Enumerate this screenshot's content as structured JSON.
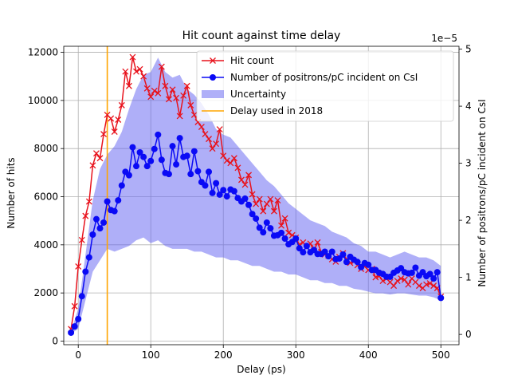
{
  "chart_data": {
    "type": "line",
    "title": "Hit count against time delay",
    "xlabel": "Delay (ps)",
    "ylabel": "Number of hits",
    "y2label": "Number of positrons/pC incident on CsI",
    "y2_offset_text": "1e−5",
    "xlim": [
      -20,
      525
    ],
    "ylim": [
      -150,
      12250
    ],
    "y2lim": [
      -0.18,
      5.05
    ],
    "x_ticks": [
      0,
      100,
      200,
      300,
      400,
      500
    ],
    "y_ticks": [
      0,
      2000,
      4000,
      6000,
      8000,
      10000,
      12000
    ],
    "y2_ticks": [
      0,
      1,
      2,
      3,
      4,
      5
    ],
    "grid": true,
    "legend_position": "top-right",
    "vline": {
      "name": "Delay used in 2018",
      "x": 40,
      "color": "#ffa500"
    },
    "series": [
      {
        "name": "Hit count",
        "axis": "left",
        "color": "#e8121c",
        "marker": "x",
        "x": [
          -10,
          -5,
          0,
          5,
          10,
          15,
          20,
          25,
          30,
          35,
          40,
          45,
          50,
          55,
          60,
          65,
          70,
          75,
          80,
          85,
          90,
          95,
          100,
          105,
          110,
          115,
          120,
          125,
          130,
          135,
          140,
          145,
          150,
          155,
          160,
          165,
          170,
          175,
          180,
          185,
          190,
          195,
          200,
          205,
          210,
          215,
          220,
          225,
          230,
          235,
          240,
          245,
          250,
          255,
          260,
          265,
          270,
          275,
          280,
          285,
          290,
          295,
          300,
          305,
          310,
          315,
          320,
          325,
          330,
          335,
          340,
          345,
          350,
          355,
          360,
          365,
          370,
          375,
          380,
          385,
          390,
          395,
          400,
          405,
          410,
          415,
          420,
          425,
          430,
          435,
          440,
          445,
          450,
          455,
          460,
          465,
          470,
          475,
          480,
          485,
          490,
          495,
          500
        ],
        "values": [
          500,
          1450,
          3100,
          4200,
          5200,
          5800,
          7300,
          7800,
          7600,
          8600,
          9400,
          9250,
          8700,
          9200,
          9800,
          11200,
          10600,
          11800,
          11200,
          11300,
          11000,
          10500,
          10150,
          10400,
          10300,
          11400,
          10600,
          10050,
          10450,
          10100,
          9350,
          10200,
          10600,
          9800,
          9400,
          9100,
          8900,
          8600,
          8400,
          8000,
          8200,
          8800,
          7700,
          7500,
          7400,
          7600,
          7200,
          6700,
          6500,
          6900,
          6100,
          5700,
          5900,
          5400,
          5700,
          5900,
          5400,
          5850,
          4800,
          5100,
          4500,
          4400,
          4300,
          4000,
          4100,
          3900,
          4050,
          3750,
          4100,
          3700,
          3600,
          3550,
          3400,
          3300,
          3500,
          3650,
          3400,
          3250,
          3300,
          3150,
          3000,
          3100,
          2950,
          3000,
          2650,
          2700,
          2500,
          2600,
          2450,
          2300,
          2500,
          2600,
          2550,
          2350,
          2600,
          2450,
          2300,
          2200,
          2350,
          2400,
          2300,
          2200,
          1850
        ]
      },
      {
        "name": "Number of positrons/pC incident on CsI",
        "axis": "right",
        "color": "#0a0af5",
        "marker": "o",
        "x": [
          -10,
          -5,
          0,
          5,
          10,
          15,
          20,
          25,
          30,
          35,
          40,
          45,
          50,
          55,
          60,
          65,
          70,
          75,
          80,
          85,
          90,
          95,
          100,
          105,
          110,
          115,
          120,
          125,
          130,
          135,
          140,
          145,
          150,
          155,
          160,
          165,
          170,
          175,
          180,
          185,
          190,
          195,
          200,
          205,
          210,
          215,
          220,
          225,
          230,
          235,
          240,
          245,
          250,
          255,
          260,
          265,
          270,
          275,
          280,
          285,
          290,
          295,
          300,
          305,
          310,
          315,
          320,
          325,
          330,
          335,
          340,
          345,
          350,
          355,
          360,
          365,
          370,
          375,
          380,
          385,
          390,
          395,
          400,
          405,
          410,
          415,
          420,
          425,
          430,
          435,
          440,
          445,
          450,
          455,
          460,
          465,
          470,
          475,
          480,
          485,
          490,
          495,
          500
        ],
        "values": [
          0.03,
          0.14,
          0.27,
          0.67,
          1.1,
          1.35,
          1.75,
          2.02,
          1.86,
          1.96,
          2.33,
          2.18,
          2.16,
          2.35,
          2.61,
          2.85,
          2.79,
          3.28,
          2.95,
          3.19,
          3.11,
          2.95,
          3.04,
          3.25,
          3.5,
          3.06,
          2.83,
          2.81,
          3.3,
          2.98,
          3.44,
          3.11,
          3.13,
          2.81,
          3.21,
          2.86,
          2.67,
          2.61,
          2.85,
          2.48,
          2.65,
          2.45,
          2.53,
          2.42,
          2.54,
          2.51,
          2.39,
          2.33,
          2.38,
          2.27,
          2.11,
          2.03,
          1.87,
          1.79,
          1.96,
          1.86,
          1.73,
          1.74,
          1.78,
          1.68,
          1.58,
          1.62,
          1.68,
          1.51,
          1.44,
          1.55,
          1.44,
          1.48,
          1.41,
          1.41,
          1.45,
          1.37,
          1.45,
          1.32,
          1.33,
          1.4,
          1.27,
          1.36,
          1.31,
          1.27,
          1.18,
          1.25,
          1.22,
          1.13,
          1.13,
          1.08,
          1.06,
          1.01,
          1.01,
          1.08,
          1.12,
          1.16,
          1.09,
          1.07,
          1.08,
          1.17,
          1.03,
          1.09,
          1.02,
          1.06,
          0.98,
          1.09,
          0.64
        ]
      }
    ],
    "uncertainty": {
      "name": "Uncertainty",
      "axis": "right",
      "color": "#5f5ff2",
      "x": [
        -10,
        0,
        10,
        20,
        30,
        40,
        50,
        60,
        70,
        80,
        90,
        100,
        110,
        120,
        130,
        140,
        150,
        160,
        170,
        180,
        190,
        200,
        210,
        220,
        230,
        240,
        250,
        260,
        270,
        280,
        290,
        300,
        310,
        320,
        330,
        340,
        350,
        360,
        370,
        380,
        390,
        400,
        410,
        420,
        430,
        440,
        450,
        460,
        470,
        480,
        490,
        500
      ],
      "upper": [
        0.05,
        0.45,
        1.4,
        2.35,
        2.9,
        3.15,
        3.3,
        3.55,
        3.95,
        4.3,
        4.55,
        4.6,
        4.85,
        4.6,
        4.5,
        4.55,
        4.3,
        4.2,
        4.05,
        3.85,
        3.6,
        3.5,
        3.45,
        3.3,
        3.15,
        3.0,
        2.85,
        2.7,
        2.6,
        2.45,
        2.3,
        2.2,
        2.1,
        2.0,
        1.95,
        1.9,
        1.8,
        1.75,
        1.7,
        1.6,
        1.55,
        1.45,
        1.45,
        1.4,
        1.35,
        1.4,
        1.45,
        1.4,
        1.35,
        1.35,
        1.3,
        1.2
      ],
      "lower": [
        0.01,
        0.1,
        0.6,
        1.1,
        1.3,
        1.5,
        1.45,
        1.5,
        1.55,
        1.65,
        1.7,
        1.6,
        1.65,
        1.55,
        1.5,
        1.5,
        1.5,
        1.45,
        1.45,
        1.4,
        1.35,
        1.35,
        1.3,
        1.3,
        1.25,
        1.2,
        1.2,
        1.15,
        1.1,
        1.1,
        1.05,
        1.05,
        1.0,
        0.95,
        0.95,
        0.9,
        0.9,
        0.85,
        0.85,
        0.8,
        0.78,
        0.75,
        0.72,
        0.72,
        0.7,
        0.72,
        0.72,
        0.7,
        0.68,
        0.68,
        0.65,
        0.6
      ]
    }
  }
}
